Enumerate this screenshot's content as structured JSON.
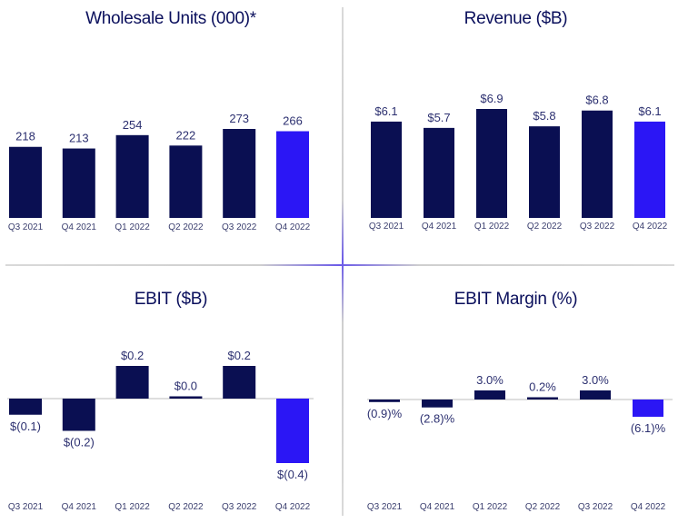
{
  "colors": {
    "bar": "#0a0f52",
    "highlight": "#2b16f5",
    "label": "#2c3070",
    "tick": "#3a3e6e",
    "zero": "#bdbdbd"
  },
  "chart_data": [
    {
      "type": "bar",
      "title": "Wholesale Units (000)*",
      "categories": [
        "Q3 2021",
        "Q4 2021",
        "Q1 2022",
        "Q2 2022",
        "Q3 2022",
        "Q4 2022"
      ],
      "values": [
        218,
        213,
        254,
        222,
        273,
        266
      ],
      "labels": [
        "218",
        "213",
        "254",
        "222",
        "273",
        "266"
      ],
      "highlight_index": 5,
      "ylim": [
        0,
        273
      ]
    },
    {
      "type": "bar",
      "title": "Revenue ($B)",
      "categories": [
        "Q3 2021",
        "Q4 2021",
        "Q1 2022",
        "Q2 2022",
        "Q3 2022",
        "Q4 2022"
      ],
      "values": [
        6.1,
        5.7,
        6.9,
        5.8,
        6.8,
        6.1
      ],
      "labels": [
        "$6.1",
        "$5.7",
        "$6.9",
        "$5.8",
        "$6.8",
        "$6.1"
      ],
      "highlight_index": 5,
      "ylim": [
        0,
        6.9
      ]
    },
    {
      "type": "bar",
      "title": "EBIT ($B)",
      "categories": [
        "Q3 2021",
        "Q4 2021",
        "Q1 2022",
        "Q2 2022",
        "Q3 2022",
        "Q4 2022"
      ],
      "values": [
        -0.1,
        -0.2,
        0.2,
        0.0,
        0.2,
        -0.4
      ],
      "labels": [
        "$(0.1)",
        "$(0.2)",
        "$0.2",
        "$0.0",
        "$0.2",
        "$(0.4)"
      ],
      "highlight_index": 5,
      "ylim": [
        -0.4,
        0.2
      ]
    },
    {
      "type": "bar",
      "title": "EBIT Margin (%)",
      "categories": [
        "Q3 2021",
        "Q4 2021",
        "Q1 2022",
        "Q2 2022",
        "Q3 2022",
        "Q4 2022"
      ],
      "values": [
        -0.9,
        -2.8,
        3.0,
        0.2,
        3.0,
        -6.1
      ],
      "labels": [
        "(0.9)%",
        "(2.8)%",
        "3.0%",
        "0.2%",
        "3.0%",
        "(6.1)%"
      ],
      "highlight_index": 5,
      "ylim": [
        -6.1,
        3.0
      ]
    }
  ]
}
